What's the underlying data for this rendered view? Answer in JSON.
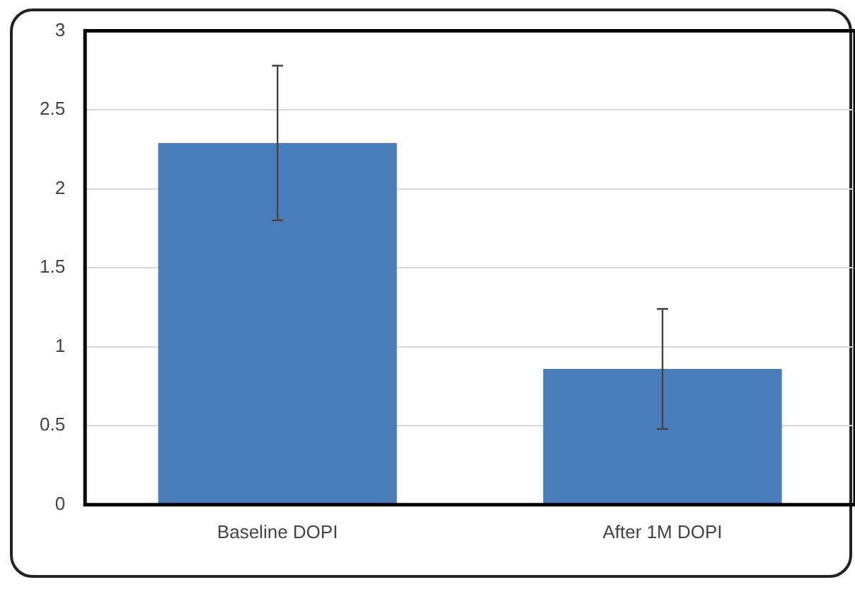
{
  "chart_data": {
    "type": "bar",
    "categories": [
      "Baseline DOPI",
      "After 1M DOPI"
    ],
    "values": [
      2.29,
      0.86
    ],
    "errors": [
      [
        1.8,
        2.78
      ],
      [
        0.48,
        1.24
      ]
    ],
    "color": "#4a7ebb",
    "ylim": [
      0,
      3
    ],
    "yticks": [
      0,
      0.5,
      1,
      1.5,
      2,
      2.5,
      3
    ],
    "grid": "y",
    "legend": false
  }
}
